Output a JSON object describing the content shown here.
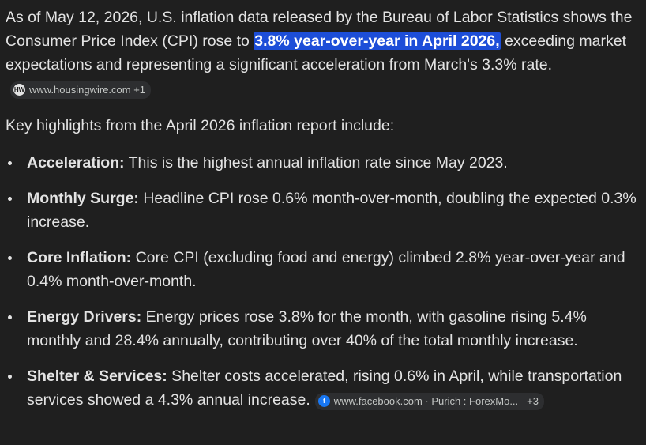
{
  "intro": {
    "text_before": "As of May 12, 2026, U.S. inflation data released by the Bureau of Labor Statistics shows the Consumer Price Index (CPI) rose to ",
    "highlight": "3.8% year-over-year in April 2026,",
    "text_after": " exceeding market expectations and representing a significant acceleration from March's 3.3% rate.",
    "source_chip": {
      "icon": "housingwire-icon",
      "text": "www.housingwire.com +1"
    }
  },
  "lead": "Key highlights from the April 2026 inflation report include:",
  "highlights": [
    {
      "label": "Acceleration:",
      "text": " This is the highest annual inflation rate since May 2023."
    },
    {
      "label": "Monthly Surge:",
      "text": " Headline CPI rose 0.6% month-over-month, doubling the expected 0.3% increase."
    },
    {
      "label": "Core Inflation:",
      "text": " Core CPI (excluding food and energy) climbed 2.8% year-over-year and 0.4% month-over-month."
    },
    {
      "label": "Energy Drivers:",
      "text": " Energy prices rose 3.8% for the month, with gasoline rising 5.4% monthly and 28.4% annually, contributing over 40% of the total monthly increase."
    },
    {
      "label": "Shelter & Services:",
      "text": " Shelter costs accelerated, rising 0.6% in April, while transportation services showed a 4.3% annual increase."
    }
  ],
  "source_chip_2": {
    "icon": "facebook-icon",
    "text": "www.facebook.com · Purich : ForexMo...",
    "extra": "+3"
  },
  "colors": {
    "background": "#1f1f1f",
    "text": "#e3e3e3",
    "highlight": "#1d4ed8",
    "chip": "#2d2e30"
  }
}
